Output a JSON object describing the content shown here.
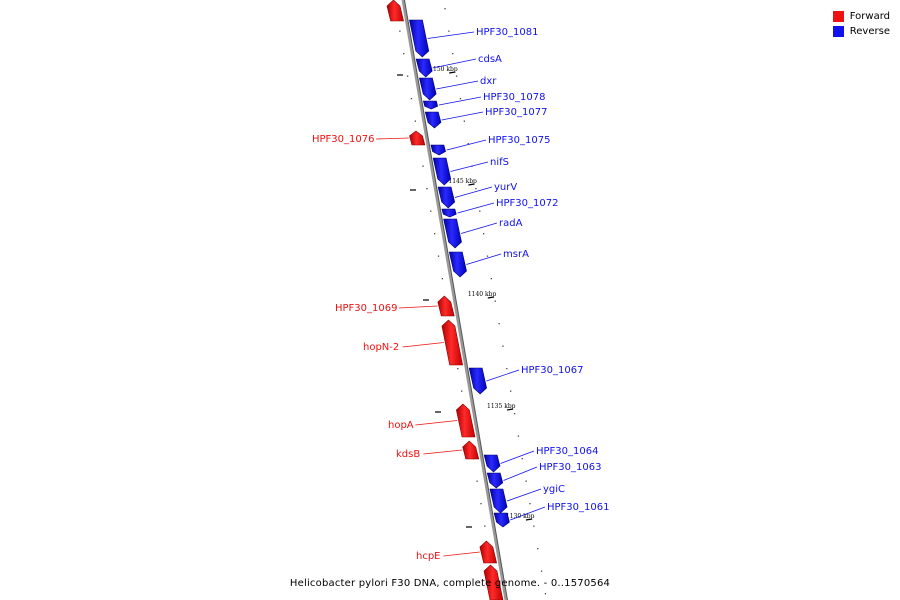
{
  "legend": [
    {
      "label": "Forward",
      "color": "#ee1111"
    },
    {
      "label": "Reverse",
      "color": "#1111ee"
    }
  ],
  "caption": "Helicobacter pylori F30 DNA, complete genome. - 0..1570564",
  "colors": {
    "forward": "#ee1111",
    "reverse": "#1111ee",
    "backbone": "#888888"
  },
  "genes": [
    {
      "label": "",
      "strand": "forward"
    },
    {
      "label": "HPF30_1081",
      "strand": "reverse"
    },
    {
      "label": "cdsA",
      "strand": "reverse"
    },
    {
      "label": "dxr",
      "strand": "reverse"
    },
    {
      "label": "HPF30_1078",
      "strand": "reverse"
    },
    {
      "label": "HPF30_1077",
      "strand": "reverse"
    },
    {
      "label": "HPF30_1076",
      "strand": "forward"
    },
    {
      "label": "HPF30_1075",
      "strand": "reverse"
    },
    {
      "label": "nifS",
      "strand": "reverse"
    },
    {
      "label": "yurV",
      "strand": "reverse"
    },
    {
      "label": "HPF30_1072",
      "strand": "reverse"
    },
    {
      "label": "radA",
      "strand": "reverse"
    },
    {
      "label": "msrA",
      "strand": "reverse"
    },
    {
      "label": "HPF30_1069",
      "strand": "forward"
    },
    {
      "label": "hopN-2",
      "strand": "forward"
    },
    {
      "label": "HPF30_1067",
      "strand": "reverse"
    },
    {
      "label": "hopA",
      "strand": "forward"
    },
    {
      "label": "kdsB",
      "strand": "forward"
    },
    {
      "label": "HPF30_1064",
      "strand": "reverse"
    },
    {
      "label": "HPF30_1063",
      "strand": "reverse"
    },
    {
      "label": "ygiC",
      "strand": "reverse"
    },
    {
      "label": "HPF30_1061",
      "strand": "reverse"
    },
    {
      "label": "hcpE",
      "strand": "forward"
    },
    {
      "label": "",
      "strand": "forward"
    }
  ],
  "ticks": [
    "1150 kbp",
    "1145 kbp",
    "1140 kbp",
    "1135 kbp",
    "1130 kbp"
  ]
}
